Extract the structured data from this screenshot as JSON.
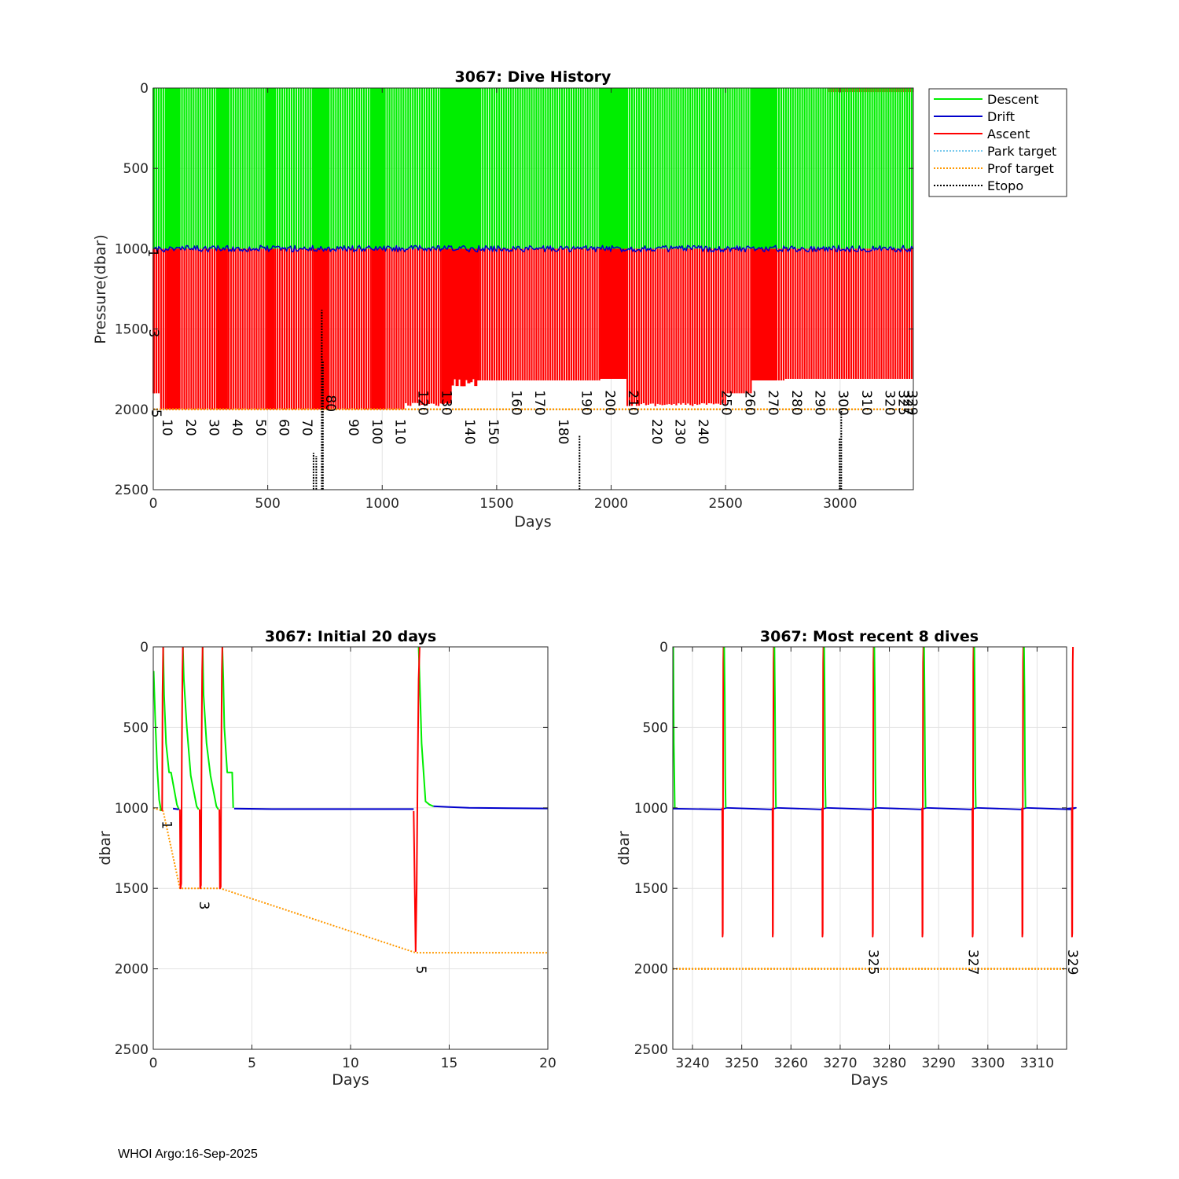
{
  "footer": "WHOI Argo:16-Sep-2025",
  "colors": {
    "descent": "#00ee00",
    "drift": "#0000cc",
    "ascent": "#ff0000",
    "park": "#4db8e8",
    "prof": "#ff9900",
    "etopo": "#000000",
    "grid": "#e3e3e3",
    "axis": "#262626"
  },
  "chart_data": [
    {
      "id": "history",
      "type": "line",
      "title": "3067: Dive History",
      "xlabel": "Days",
      "ylabel": "Pressure(dbar)",
      "xlim": [
        0,
        3320
      ],
      "ylim": [
        0,
        2500
      ],
      "y_reversed": true,
      "xticks": [
        0,
        500,
        1000,
        1500,
        2000,
        2500,
        3000
      ],
      "yticks": [
        0,
        500,
        1000,
        1500,
        2000,
        2500
      ],
      "legend": {
        "position": "outside-top-right",
        "entries": [
          "Descent",
          "Drift",
          "Ascent",
          "Park target",
          "Prof target",
          "Etopo"
        ]
      },
      "park_target": 1000,
      "prof_target": 2000,
      "drift_depth": 1000,
      "cycle_labels": [
        {
          "label": "1",
          "x": 0,
          "y": 1000
        },
        {
          "label": "3",
          "x": 3,
          "y": 1500
        },
        {
          "label": "5",
          "x": 13,
          "y": 2000
        },
        {
          "label": "10",
          "x": 62,
          "y": 2060
        },
        {
          "label": "20",
          "x": 164,
          "y": 2060
        },
        {
          "label": "30",
          "x": 266,
          "y": 2060
        },
        {
          "label": "40",
          "x": 368,
          "y": 2060
        },
        {
          "label": "50",
          "x": 470,
          "y": 2060
        },
        {
          "label": "60",
          "x": 571,
          "y": 2060
        },
        {
          "label": "70",
          "x": 673,
          "y": 2060
        },
        {
          "label": "80",
          "x": 776,
          "y": 1910
        },
        {
          "label": "90",
          "x": 876,
          "y": 2060
        },
        {
          "label": "100",
          "x": 978,
          "y": 2060
        },
        {
          "label": "110",
          "x": 1080,
          "y": 2060
        },
        {
          "label": "120",
          "x": 1180,
          "y": 1880
        },
        {
          "label": "130",
          "x": 1282,
          "y": 1880
        },
        {
          "label": "140",
          "x": 1384,
          "y": 2060
        },
        {
          "label": "150",
          "x": 1486,
          "y": 2060
        },
        {
          "label": "160",
          "x": 1588,
          "y": 1880
        },
        {
          "label": "170",
          "x": 1690,
          "y": 1880
        },
        {
          "label": "180",
          "x": 1792,
          "y": 2060
        },
        {
          "label": "190",
          "x": 1894,
          "y": 1880
        },
        {
          "label": "200",
          "x": 1996,
          "y": 1880
        },
        {
          "label": "210",
          "x": 2098,
          "y": 1880
        },
        {
          "label": "220",
          "x": 2200,
          "y": 2060
        },
        {
          "label": "230",
          "x": 2302,
          "y": 2060
        },
        {
          "label": "240",
          "x": 2404,
          "y": 2060
        },
        {
          "label": "250",
          "x": 2505,
          "y": 1880
        },
        {
          "label": "260",
          "x": 2607,
          "y": 1880
        },
        {
          "label": "270",
          "x": 2709,
          "y": 1880
        },
        {
          "label": "280",
          "x": 2811,
          "y": 1880
        },
        {
          "label": "290",
          "x": 2913,
          "y": 1880
        },
        {
          "label": "300",
          "x": 3015,
          "y": 1880
        },
        {
          "label": "310",
          "x": 3117,
          "y": 1880
        },
        {
          "label": "320",
          "x": 3219,
          "y": 1880
        },
        {
          "label": "325",
          "x": 3277,
          "y": 1880
        },
        {
          "label": "327",
          "x": 3297,
          "y": 1880
        },
        {
          "label": "329",
          "x": 3317,
          "y": 1880
        }
      ],
      "etopo_spikes": [
        {
          "x": 700,
          "top": 2270
        },
        {
          "x": 712,
          "top": 2290
        },
        {
          "x": 736,
          "top": 1380
        },
        {
          "x": 741,
          "top": 1700
        },
        {
          "x": 1862,
          "top": 2160
        },
        {
          "x": 2998,
          "top": 2180
        },
        {
          "x": 3005,
          "top": 1990
        }
      ]
    },
    {
      "id": "initial",
      "type": "line",
      "title": "3067: Initial 20 days",
      "xlabel": "Days",
      "ylabel": "dbar",
      "xlim": [
        0,
        20
      ],
      "ylim": [
        0,
        2500
      ],
      "y_reversed": true,
      "xticks": [
        0,
        5,
        10,
        15,
        20
      ],
      "yticks": [
        0,
        500,
        1000,
        1500,
        2000,
        2500
      ],
      "series": [
        {
          "name": "Descent",
          "x": [
            0.02,
            0.1,
            0.2,
            0.3,
            0.4
          ],
          "y": [
            150,
            450,
            750,
            950,
            1020
          ]
        },
        {
          "name": "Descent",
          "x": [
            0.5,
            0.55,
            0.65,
            0.8,
            0.9,
            1.2,
            1.3
          ],
          "y": [
            0,
            300,
            600,
            780,
            780,
            980,
            1010
          ]
        },
        {
          "name": "Descent",
          "x": [
            1.5,
            1.55,
            1.7,
            1.9,
            2.2,
            2.3
          ],
          "y": [
            0,
            200,
            500,
            800,
            990,
            1010
          ]
        },
        {
          "name": "Descent",
          "x": [
            2.5,
            2.55,
            2.7,
            2.9,
            3.2,
            3.3
          ],
          "y": [
            0,
            300,
            600,
            800,
            990,
            1010
          ]
        },
        {
          "name": "Descent",
          "x": [
            3.5,
            3.55,
            3.6,
            3.75,
            4.0,
            4.05
          ],
          "y": [
            0,
            200,
            500,
            780,
            780,
            1000
          ]
        },
        {
          "name": "Descent",
          "x": [
            13.45,
            13.5,
            13.6,
            13.8,
            14.0,
            14.2
          ],
          "y": [
            0,
            200,
            600,
            960,
            980,
            990
          ]
        },
        {
          "name": "Drift",
          "x": [
            1.0,
            1.3
          ],
          "y": [
            1005,
            1010
          ]
        },
        {
          "name": "Drift",
          "x": [
            4.1,
            6,
            8,
            10,
            12,
            13.2
          ],
          "y": [
            1005,
            1008,
            1008,
            1008,
            1008,
            1008
          ]
        },
        {
          "name": "Drift",
          "x": [
            14.2,
            15,
            16,
            18,
            20
          ],
          "y": [
            990,
            995,
            1000,
            1002,
            1004
          ]
        },
        {
          "name": "Ascent",
          "x": [
            0.45,
            0.47,
            0.5
          ],
          "y": [
            1020,
            300,
            0
          ]
        },
        {
          "name": "Ascent",
          "x": [
            1.35,
            1.38,
            1.42,
            1.45,
            1.48,
            1.5
          ],
          "y": [
            1010,
            1500,
            1470,
            600,
            150,
            0
          ]
        },
        {
          "name": "Ascent",
          "x": [
            2.35,
            2.38,
            2.42,
            2.45,
            2.48,
            2.5
          ],
          "y": [
            1010,
            1500,
            1480,
            600,
            150,
            0
          ]
        },
        {
          "name": "Ascent",
          "x": [
            3.35,
            3.38,
            3.42,
            3.45,
            3.48,
            3.5
          ],
          "y": [
            1010,
            1500,
            1490,
            600,
            150,
            0
          ]
        },
        {
          "name": "Ascent",
          "x": [
            13.2,
            13.3,
            13.35,
            13.4,
            13.45,
            13.5
          ],
          "y": [
            1020,
            1890,
            1500,
            800,
            200,
            0
          ]
        }
      ],
      "park_series": {
        "x": [
          0,
          0.02
        ],
        "y": [
          1000,
          1000
        ]
      },
      "prof_series": {
        "x": [
          0,
          0.5,
          1.35,
          3.4,
          13.3,
          20
        ],
        "y": [
          1000,
          1020,
          1500,
          1500,
          1900,
          1900
        ]
      },
      "cycle_labels": [
        {
          "label": "1",
          "x": 0.45,
          "y": 1080
        },
        {
          "label": "3",
          "x": 2.35,
          "y": 1580
        },
        {
          "label": "5",
          "x": 13.35,
          "y": 1980
        }
      ]
    },
    {
      "id": "recent",
      "type": "line",
      "title": "3067: Most recent 8 dives",
      "xlabel": "Days",
      "ylabel": "dbar",
      "xlim": [
        3236,
        3316
      ],
      "ylim": [
        0,
        2500
      ],
      "y_reversed": true,
      "xticks": [
        3240,
        3250,
        3260,
        3270,
        3280,
        3290,
        3300,
        3310
      ],
      "yticks": [
        0,
        500,
        1000,
        1500,
        2000,
        2500
      ],
      "prof_target": 2000,
      "drift_depth": 1005,
      "dives": [
        3246.3,
        3256.5,
        3266.6,
        3276.8,
        3286.9,
        3297.1,
        3307.2,
        3317.3
      ],
      "cycle_labels": [
        {
          "label": "325",
          "x": 3276.8,
          "y": 1880
        },
        {
          "label": "327",
          "x": 3297.1,
          "y": 1880
        },
        {
          "label": "329",
          "x": 3317.3,
          "y": 1880
        }
      ]
    }
  ]
}
